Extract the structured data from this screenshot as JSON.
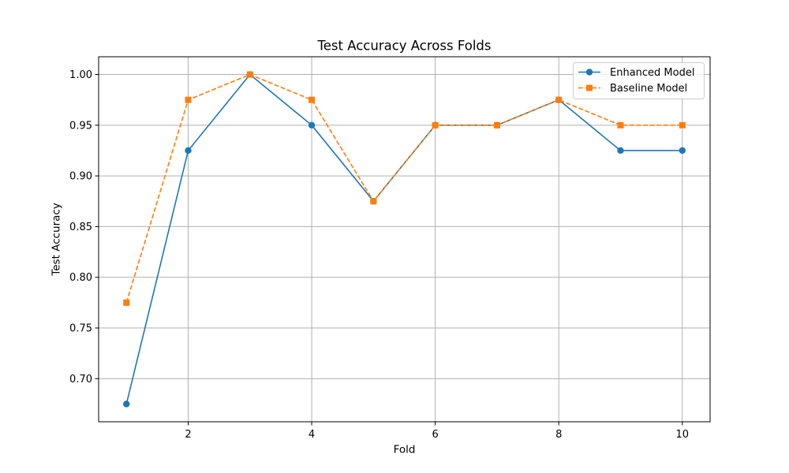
{
  "chart_data": {
    "type": "line",
    "title": "Test Accuracy Across Folds",
    "xlabel": "Fold",
    "ylabel": "Test Accuracy",
    "x": [
      1,
      2,
      3,
      4,
      5,
      6,
      7,
      8,
      9,
      10
    ],
    "xlim": [
      0.55,
      10.45
    ],
    "ylim": [
      0.6575,
      1.0175
    ],
    "xticks": [
      2,
      4,
      6,
      8,
      10
    ],
    "xtick_labels": [
      "2",
      "4",
      "6",
      "8",
      "10"
    ],
    "yticks": [
      0.7,
      0.75,
      0.8,
      0.85,
      0.9,
      0.95,
      1.0
    ],
    "ytick_labels": [
      "0.70",
      "0.75",
      "0.80",
      "0.85",
      "0.90",
      "0.95",
      "1.00"
    ],
    "grid": true,
    "legend_position": "top-right",
    "series": [
      {
        "name": "Enhanced Model",
        "values": [
          0.675,
          0.925,
          1.0,
          0.95,
          0.875,
          0.95,
          0.95,
          0.975,
          0.925,
          0.925
        ],
        "color": "#1f77b4",
        "marker": "circle",
        "linestyle": "solid"
      },
      {
        "name": "Baseline Model",
        "values": [
          0.775,
          0.975,
          1.0,
          0.975,
          0.875,
          0.95,
          0.95,
          0.975,
          0.95,
          0.95
        ],
        "color": "#ff7f0e",
        "marker": "square",
        "linestyle": "dashed"
      }
    ]
  }
}
